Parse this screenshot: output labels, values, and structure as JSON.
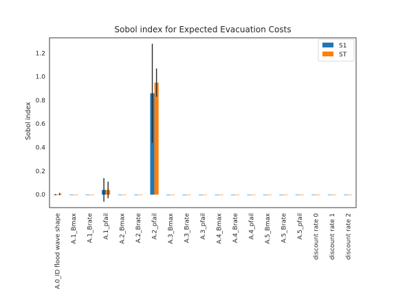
{
  "chart_data": {
    "type": "bar",
    "title": "Sobol index for Expected Evacuation Costs",
    "xlabel": "",
    "ylabel": "Sobol index",
    "ylim": [
      -0.11,
      1.33
    ],
    "yticks": [
      0.0,
      0.2,
      0.4,
      0.6,
      0.8,
      1.0,
      1.2
    ],
    "grid": false,
    "legend_position": "top-right",
    "categories": [
      "A.0_ID flood wave shape",
      "A.1_Bmax",
      "A.1_Brate",
      "A.1_pfail",
      "A.2_Bmax",
      "A.2_Brate",
      "A.2_pfail",
      "A.3_Bmax",
      "A.3_Brate",
      "A.3_pfail",
      "A.4_Bmax",
      "A.4_Brate",
      "A.4_pfail",
      "A.5_Bmax",
      "A.5_Brate",
      "A.5_pfail",
      "discount rate 0",
      "discount rate 1",
      "discount rate 2"
    ],
    "series": [
      {
        "name": "S1",
        "color": "#1f77b4",
        "values": [
          0.0,
          0.0,
          0.0,
          0.04,
          0.0,
          0.0,
          0.86,
          0.0,
          0.0,
          0.0,
          0.0,
          0.0,
          0.0,
          0.0,
          0.0,
          0.0,
          0.0,
          0.0,
          0.0
        ],
        "conf": [
          0.005,
          0,
          0,
          0.1,
          0,
          0,
          0.42,
          0,
          0,
          0,
          0,
          0,
          0,
          0,
          0,
          0,
          0,
          0,
          0
        ]
      },
      {
        "name": "ST",
        "color": "#ff7f0e",
        "values": [
          0.005,
          0.0,
          0.0,
          0.04,
          0.0,
          0.0,
          0.95,
          0.0,
          0.0,
          0.0,
          0.0,
          0.0,
          0.0,
          0.0,
          0.0,
          0.0,
          0.0,
          0.0,
          0.0
        ],
        "conf": [
          0.01,
          0,
          0,
          0.07,
          0,
          0,
          0.12,
          0,
          0,
          0,
          0,
          0,
          0,
          0,
          0,
          0,
          0,
          0,
          0
        ]
      }
    ]
  }
}
